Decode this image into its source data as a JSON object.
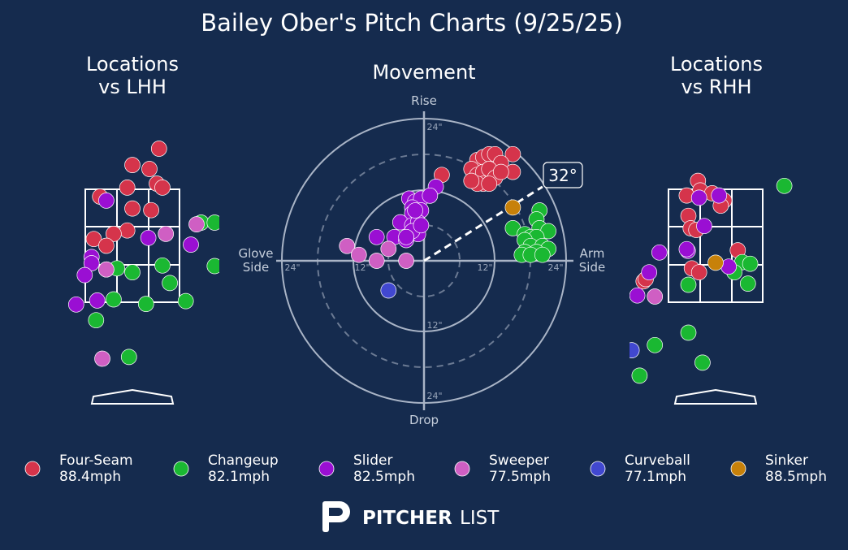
{
  "page": {
    "title": "Bailey Ober's Pitch Charts (9/25/25)",
    "panel_left_title": [
      "Locations",
      "vs LHH"
    ],
    "panel_center_title": "Movement",
    "panel_right_title": [
      "Locations",
      "vs RHH"
    ],
    "logo_text_bold": "PITCHER",
    "logo_text_light": "LIST",
    "background_color": "#152b4e"
  },
  "chart_data": [
    {
      "type": "scatter",
      "title": "Movement",
      "units": "inches",
      "axis_labels": {
        "top": "Rise",
        "bottom": "Drop",
        "left": [
          "Glove",
          "Side"
        ],
        "right": [
          "Arm",
          "Side"
        ]
      },
      "ring_labels": {
        "right": [
          "12\"",
          "24\""
        ],
        "left": [
          "12\"",
          "24\""
        ],
        "top": [
          "24\""
        ],
        "bottom": [
          "12\"",
          "24\""
        ]
      },
      "rings_solid": [
        12,
        24
      ],
      "rings_dashed": [
        6,
        18
      ],
      "xlim": [
        -24,
        24
      ],
      "ylim": [
        -24,
        24
      ],
      "arm_angle": {
        "degrees": 32,
        "label": "32°"
      },
      "points": [
        {
          "pitch": "Four-Seam",
          "x": 9,
          "y": 17
        },
        {
          "pitch": "Four-Seam",
          "x": 10,
          "y": 17.5
        },
        {
          "pitch": "Four-Seam",
          "x": 11,
          "y": 18
        },
        {
          "pitch": "Four-Seam",
          "x": 12,
          "y": 18
        },
        {
          "pitch": "Four-Seam",
          "x": 15,
          "y": 18
        },
        {
          "pitch": "Four-Seam",
          "x": 13,
          "y": 16.5
        },
        {
          "pitch": "Four-Seam",
          "x": 8,
          "y": 15.5
        },
        {
          "pitch": "Four-Seam",
          "x": 9,
          "y": 14.5
        },
        {
          "pitch": "Four-Seam",
          "x": 10,
          "y": 15
        },
        {
          "pitch": "Four-Seam",
          "x": 11,
          "y": 15.5
        },
        {
          "pitch": "Four-Seam",
          "x": 12,
          "y": 14
        },
        {
          "pitch": "Four-Seam",
          "x": 10,
          "y": 13
        },
        {
          "pitch": "Four-Seam",
          "x": 9,
          "y": 13
        },
        {
          "pitch": "Four-Seam",
          "x": 8,
          "y": 13.5
        },
        {
          "pitch": "Four-Seam",
          "x": 11,
          "y": 13
        },
        {
          "pitch": "Four-Seam",
          "x": 15,
          "y": 15
        },
        {
          "pitch": "Four-Seam",
          "x": 13,
          "y": 15
        },
        {
          "pitch": "Four-Seam",
          "x": 3,
          "y": 14.5
        },
        {
          "pitch": "Changeup",
          "x": 19.5,
          "y": 8.5
        },
        {
          "pitch": "Changeup",
          "x": 19,
          "y": 7
        },
        {
          "pitch": "Changeup",
          "x": 19.5,
          "y": 5.5
        },
        {
          "pitch": "Changeup",
          "x": 21,
          "y": 5
        },
        {
          "pitch": "Changeup",
          "x": 15,
          "y": 5.5
        },
        {
          "pitch": "Changeup",
          "x": 17,
          "y": 4.5
        },
        {
          "pitch": "Changeup",
          "x": 18,
          "y": 4
        },
        {
          "pitch": "Changeup",
          "x": 19,
          "y": 4
        },
        {
          "pitch": "Changeup",
          "x": 17,
          "y": 3.5
        },
        {
          "pitch": "Changeup",
          "x": 18,
          "y": 2.5
        },
        {
          "pitch": "Changeup",
          "x": 20,
          "y": 2.5
        },
        {
          "pitch": "Changeup",
          "x": 21,
          "y": 2
        },
        {
          "pitch": "Changeup",
          "x": 17,
          "y": 1.5
        },
        {
          "pitch": "Changeup",
          "x": 19,
          "y": 1.5
        },
        {
          "pitch": "Changeup",
          "x": 16.5,
          "y": 1
        },
        {
          "pitch": "Changeup",
          "x": 18,
          "y": 1
        },
        {
          "pitch": "Changeup",
          "x": 20,
          "y": 1
        },
        {
          "pitch": "Slider",
          "x": 2,
          "y": 12.5
        },
        {
          "pitch": "Slider",
          "x": 1,
          "y": 11
        },
        {
          "pitch": "Slider",
          "x": -2.5,
          "y": 10.5
        },
        {
          "pitch": "Slider",
          "x": -1.5,
          "y": 10
        },
        {
          "pitch": "Slider",
          "x": -0.5,
          "y": 10.5
        },
        {
          "pitch": "Slider",
          "x": -2,
          "y": 9
        },
        {
          "pitch": "Slider",
          "x": -2,
          "y": 8
        },
        {
          "pitch": "Slider",
          "x": -0.5,
          "y": 8.5
        },
        {
          "pitch": "Slider",
          "x": -4,
          "y": 6.5
        },
        {
          "pitch": "Slider",
          "x": -2,
          "y": 6
        },
        {
          "pitch": "Slider",
          "x": -1,
          "y": 6.5
        },
        {
          "pitch": "Slider",
          "x": -1,
          "y": 4.5
        },
        {
          "pitch": "Slider",
          "x": -2,
          "y": 5
        },
        {
          "pitch": "Slider",
          "x": -3,
          "y": 4
        },
        {
          "pitch": "Slider",
          "x": -5,
          "y": 4
        },
        {
          "pitch": "Slider",
          "x": -8,
          "y": 4
        },
        {
          "pitch": "Slider",
          "x": -3,
          "y": 3.5
        },
        {
          "pitch": "Slider",
          "x": -3,
          "y": 4
        },
        {
          "pitch": "Slider",
          "x": 1,
          "y": 11
        },
        {
          "pitch": "Slider",
          "x": -1.5,
          "y": 8.5
        },
        {
          "pitch": "Slider",
          "x": -0.5,
          "y": 6
        },
        {
          "pitch": "Sweeper",
          "x": -13,
          "y": 2.5
        },
        {
          "pitch": "Sweeper",
          "x": -11,
          "y": 1
        },
        {
          "pitch": "Sweeper",
          "x": -6,
          "y": 2
        },
        {
          "pitch": "Sweeper",
          "x": -8,
          "y": 0
        },
        {
          "pitch": "Sweeper",
          "x": -3,
          "y": 0
        },
        {
          "pitch": "Curveball",
          "x": -6,
          "y": -5
        },
        {
          "pitch": "Sinker",
          "x": 15,
          "y": 9
        }
      ]
    },
    {
      "type": "scatter",
      "title": "Locations vs LHH",
      "zone": {
        "left": -0.83,
        "right": 0.83,
        "bottom": 1.5,
        "top": 3.5,
        "grid": 3
      },
      "xlim": [
        -2.2,
        1.45
      ],
      "ylim": [
        -0.2,
        4.3
      ],
      "points": [
        {
          "pitch": "Four-Seam",
          "x": 0.47,
          "y": 4.22
        },
        {
          "pitch": "Four-Seam",
          "x": 0.0,
          "y": 3.93
        },
        {
          "pitch": "Four-Seam",
          "x": 0.3,
          "y": 3.86
        },
        {
          "pitch": "Four-Seam",
          "x": 0.43,
          "y": 3.6
        },
        {
          "pitch": "Four-Seam",
          "x": 0.53,
          "y": 3.53
        },
        {
          "pitch": "Four-Seam",
          "x": -0.09,
          "y": 3.53
        },
        {
          "pitch": "Four-Seam",
          "x": -0.57,
          "y": 3.37
        },
        {
          "pitch": "Four-Seam",
          "x": 0.0,
          "y": 3.16
        },
        {
          "pitch": "Four-Seam",
          "x": 0.33,
          "y": 3.13
        },
        {
          "pitch": "Four-Seam",
          "x": -0.09,
          "y": 2.77
        },
        {
          "pitch": "Four-Seam",
          "x": -0.33,
          "y": 2.71
        },
        {
          "pitch": "Four-Seam",
          "x": -0.68,
          "y": 2.62
        },
        {
          "pitch": "Four-Seam",
          "x": -0.46,
          "y": 2.5
        },
        {
          "pitch": "Four-Seam",
          "x": -0.46,
          "y": 2.08
        },
        {
          "pitch": "Changeup",
          "x": 1.21,
          "y": 2.91
        },
        {
          "pitch": "Changeup",
          "x": 1.45,
          "y": 2.91
        },
        {
          "pitch": "Changeup",
          "x": 0.53,
          "y": 2.15
        },
        {
          "pitch": "Changeup",
          "x": -0.27,
          "y": 2.1
        },
        {
          "pitch": "Changeup",
          "x": 0.0,
          "y": 2.03
        },
        {
          "pitch": "Changeup",
          "x": 0.66,
          "y": 1.84
        },
        {
          "pitch": "Changeup",
          "x": -0.33,
          "y": 1.55
        },
        {
          "pitch": "Changeup",
          "x": 0.24,
          "y": 1.47
        },
        {
          "pitch": "Changeup",
          "x": 0.94,
          "y": 1.52
        },
        {
          "pitch": "Changeup",
          "x": -0.64,
          "y": 1.18
        },
        {
          "pitch": "Changeup",
          "x": -0.06,
          "y": 0.53
        },
        {
          "pitch": "Changeup",
          "x": 1.45,
          "y": 2.14
        },
        {
          "pitch": "Slider",
          "x": -0.46,
          "y": 3.3
        },
        {
          "pitch": "Slider",
          "x": 0.28,
          "y": 2.64
        },
        {
          "pitch": "Slider",
          "x": 1.03,
          "y": 2.52
        },
        {
          "pitch": "Slider",
          "x": -0.72,
          "y": 2.3
        },
        {
          "pitch": "Slider",
          "x": -0.72,
          "y": 2.19
        },
        {
          "pitch": "Slider",
          "x": -0.84,
          "y": 1.98
        },
        {
          "pitch": "Slider",
          "x": -0.62,
          "y": 1.53
        },
        {
          "pitch": "Slider",
          "x": -0.99,
          "y": 1.46
        },
        {
          "pitch": "Sweeper",
          "x": 0.59,
          "y": 2.71
        },
        {
          "pitch": "Sweeper",
          "x": 1.13,
          "y": 2.88
        },
        {
          "pitch": "Sweeper",
          "x": -0.46,
          "y": 2.08
        },
        {
          "pitch": "Sweeper",
          "x": -0.53,
          "y": 0.5
        }
      ]
    },
    {
      "type": "scatter",
      "title": "Locations vs RHH",
      "zone": {
        "left": -0.83,
        "right": 0.83,
        "bottom": 1.5,
        "top": 3.5,
        "grid": 3
      },
      "xlim": [
        -1.45,
        2.2
      ],
      "ylim": [
        -0.2,
        4.3
      ],
      "points": [
        {
          "pitch": "Four-Seam",
          "x": -0.31,
          "y": 3.65
        },
        {
          "pitch": "Four-Seam",
          "x": -0.27,
          "y": 3.48
        },
        {
          "pitch": "Four-Seam",
          "x": -0.51,
          "y": 3.39
        },
        {
          "pitch": "Four-Seam",
          "x": -0.06,
          "y": 3.43
        },
        {
          "pitch": "Four-Seam",
          "x": 0.15,
          "y": 3.3
        },
        {
          "pitch": "Four-Seam",
          "x": 0.09,
          "y": 3.21
        },
        {
          "pitch": "Four-Seam",
          "x": -0.48,
          "y": 3.03
        },
        {
          "pitch": "Four-Seam",
          "x": -0.44,
          "y": 2.81
        },
        {
          "pitch": "Four-Seam",
          "x": -0.34,
          "y": 2.78
        },
        {
          "pitch": "Four-Seam",
          "x": 0.39,
          "y": 2.42
        },
        {
          "pitch": "Four-Seam",
          "x": -0.42,
          "y": 2.1
        },
        {
          "pitch": "Four-Seam",
          "x": -0.29,
          "y": 2.03
        },
        {
          "pitch": "Four-Seam",
          "x": -1.27,
          "y": 1.87
        },
        {
          "pitch": "Four-Seam",
          "x": -1.23,
          "y": 1.91
        },
        {
          "pitch": "Changeup",
          "x": 1.21,
          "y": 3.56
        },
        {
          "pitch": "Changeup",
          "x": 0.47,
          "y": 2.21
        },
        {
          "pitch": "Changeup",
          "x": 0.61,
          "y": 2.18
        },
        {
          "pitch": "Changeup",
          "x": 0.33,
          "y": 2.03
        },
        {
          "pitch": "Changeup",
          "x": 0.57,
          "y": 1.83
        },
        {
          "pitch": "Changeup",
          "x": -0.48,
          "y": 1.81
        },
        {
          "pitch": "Changeup",
          "x": -0.48,
          "y": 0.96
        },
        {
          "pitch": "Changeup",
          "x": -1.07,
          "y": 0.74
        },
        {
          "pitch": "Changeup",
          "x": -0.23,
          "y": 0.43
        },
        {
          "pitch": "Changeup",
          "x": -1.34,
          "y": 0.2
        },
        {
          "pitch": "Slider",
          "x": -0.29,
          "y": 3.35
        },
        {
          "pitch": "Slider",
          "x": 0.06,
          "y": 3.39
        },
        {
          "pitch": "Slider",
          "x": -0.2,
          "y": 2.85
        },
        {
          "pitch": "Slider",
          "x": -0.49,
          "y": 2.41
        },
        {
          "pitch": "Slider",
          "x": -0.51,
          "y": 2.44
        },
        {
          "pitch": "Slider",
          "x": -0.99,
          "y": 2.38
        },
        {
          "pitch": "Slider",
          "x": 0.23,
          "y": 2.13
        },
        {
          "pitch": "Slider",
          "x": -1.17,
          "y": 2.03
        },
        {
          "pitch": "Slider",
          "x": -1.38,
          "y": 1.62
        },
        {
          "pitch": "Sweeper",
          "x": -1.07,
          "y": 1.6
        },
        {
          "pitch": "Curveball",
          "x": -1.48,
          "y": 0.65
        },
        {
          "pitch": "Sinker",
          "x": 0.0,
          "y": 2.2
        }
      ]
    }
  ],
  "legend": [
    {
      "key": "Four-Seam",
      "name": "Four-Seam",
      "velo": "88.4mph",
      "color": "#d5344b"
    },
    {
      "key": "Changeup",
      "name": "Changeup",
      "velo": "82.1mph",
      "color": "#1ab832"
    },
    {
      "key": "Slider",
      "name": "Slider",
      "velo": "82.5mph",
      "color": "#9a0fd3"
    },
    {
      "key": "Sweeper",
      "name": "Sweeper",
      "velo": "77.5mph",
      "color": "#cf5fc3"
    },
    {
      "key": "Curveball",
      "name": "Curveball",
      "velo": "77.1mph",
      "color": "#4148d0"
    },
    {
      "key": "Sinker",
      "name": "Sinker",
      "velo": "88.5mph",
      "color": "#c7810a"
    }
  ]
}
